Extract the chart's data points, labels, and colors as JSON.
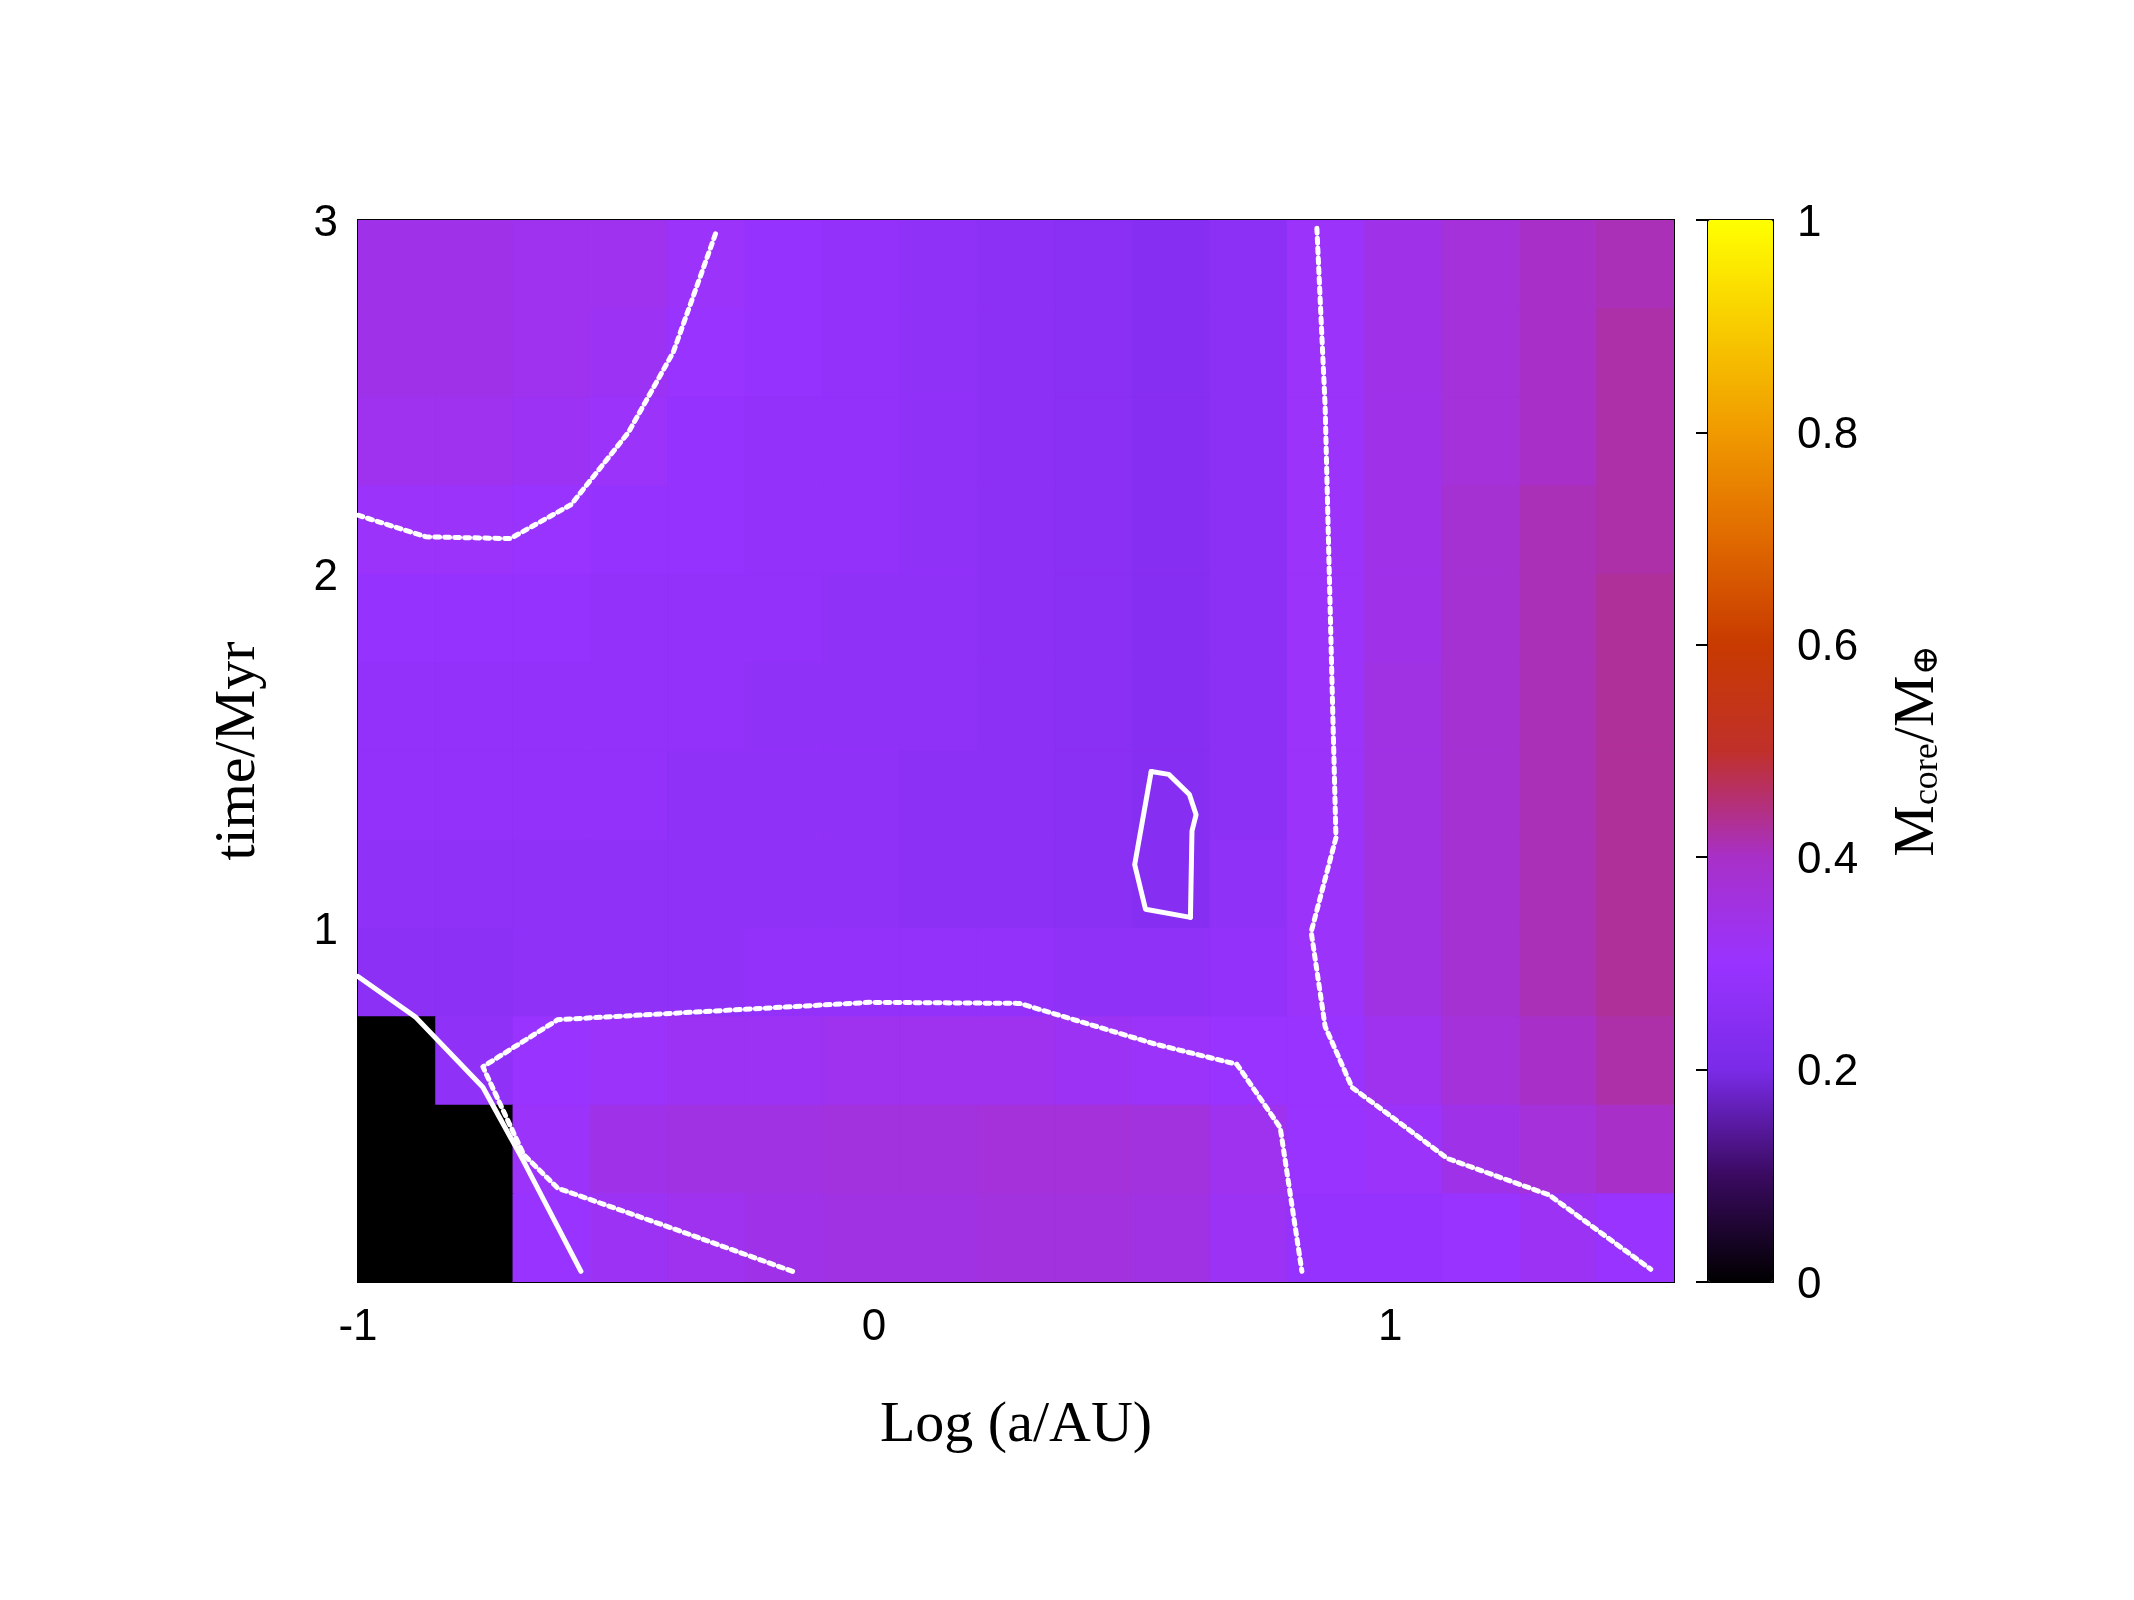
{
  "chart_data": {
    "type": "heatmap",
    "xlabel": "Log (a/AU)",
    "ylabel": "time/Myr",
    "clabel": "M$_{core}$/M$_{⊕}$",
    "x": [
      -0.925,
      -0.775,
      -0.625,
      -0.475,
      -0.325,
      -0.175,
      -0.025,
      0.125,
      0.275,
      0.425,
      0.575,
      0.725,
      0.875,
      1.025,
      1.175,
      1.325,
      1.475
    ],
    "y": [
      2.875,
      2.625,
      2.375,
      2.125,
      1.875,
      1.625,
      1.375,
      1.125,
      0.875,
      0.625,
      0.375,
      0.125
    ],
    "cells": [
      [
        0.34,
        0.34,
        0.33,
        0.33,
        0.31,
        0.29,
        0.28,
        0.27,
        0.26,
        0.25,
        0.24,
        0.26,
        0.31,
        0.34,
        0.37,
        0.4,
        0.41
      ],
      [
        0.34,
        0.34,
        0.33,
        0.32,
        0.3,
        0.29,
        0.28,
        0.27,
        0.26,
        0.25,
        0.24,
        0.26,
        0.31,
        0.34,
        0.37,
        0.4,
        0.42
      ],
      [
        0.33,
        0.33,
        0.32,
        0.31,
        0.29,
        0.28,
        0.28,
        0.27,
        0.26,
        0.25,
        0.24,
        0.26,
        0.31,
        0.34,
        0.37,
        0.4,
        0.42
      ],
      [
        0.31,
        0.31,
        0.3,
        0.29,
        0.29,
        0.28,
        0.28,
        0.27,
        0.26,
        0.25,
        0.24,
        0.26,
        0.31,
        0.34,
        0.38,
        0.41,
        0.42
      ],
      [
        0.29,
        0.29,
        0.29,
        0.28,
        0.28,
        0.28,
        0.27,
        0.27,
        0.26,
        0.25,
        0.24,
        0.26,
        0.31,
        0.34,
        0.38,
        0.41,
        0.43
      ],
      [
        0.28,
        0.28,
        0.28,
        0.28,
        0.28,
        0.27,
        0.27,
        0.27,
        0.26,
        0.25,
        0.24,
        0.26,
        0.31,
        0.35,
        0.38,
        0.41,
        0.43
      ],
      [
        0.28,
        0.28,
        0.28,
        0.28,
        0.27,
        0.27,
        0.27,
        0.26,
        0.26,
        0.25,
        0.24,
        0.26,
        0.31,
        0.35,
        0.38,
        0.41,
        0.43
      ],
      [
        0.27,
        0.27,
        0.27,
        0.27,
        0.27,
        0.27,
        0.27,
        0.26,
        0.26,
        0.25,
        0.24,
        0.27,
        0.31,
        0.35,
        0.38,
        0.41,
        0.43
      ],
      [
        0.26,
        0.26,
        0.27,
        0.27,
        0.27,
        0.28,
        0.28,
        0.28,
        0.28,
        0.27,
        0.27,
        0.28,
        0.31,
        0.35,
        0.38,
        0.41,
        0.43
      ],
      [
        0,
        0.27,
        0.3,
        0.31,
        0.32,
        0.32,
        0.33,
        0.33,
        0.33,
        0.32,
        0.31,
        0.3,
        0.3,
        0.33,
        0.37,
        0.4,
        0.42
      ],
      [
        0,
        0,
        0.31,
        0.34,
        0.35,
        0.35,
        0.36,
        0.36,
        0.37,
        0.37,
        0.36,
        0.33,
        0.3,
        0.31,
        0.34,
        0.37,
        0.4
      ],
      [
        0,
        0,
        0.3,
        0.32,
        0.33,
        0.34,
        0.35,
        0.35,
        0.36,
        0.36,
        0.35,
        0.32,
        0.29,
        0.29,
        0.3,
        0.32,
        0.3
      ]
    ],
    "series": [
      {
        "type": "line",
        "color": "#ffffff",
        "line_style": "dotted",
        "x": [
          -1,
          -0.868,
          -0.705,
          -0.587,
          -0.476,
          -0.389,
          -0.305
        ],
        "values": [
          2.166,
          2.105,
          2.1,
          2.196,
          2.4,
          2.627,
          2.97
        ]
      },
      {
        "type": "line",
        "color": "#ffffff",
        "line_style": "dotted",
        "x": [
          0.858,
          0.874,
          0.887,
          0.895,
          0.847,
          0.874,
          0.926,
          1.111,
          1.308,
          1.505
        ],
        "values": [
          2.977,
          2.474,
          1.712,
          1.255,
          0.989,
          0.722,
          0.55,
          0.349,
          0.246,
          0.036
        ]
      },
      {
        "type": "line",
        "color": "#ffffff",
        "line_style": "dotted",
        "x": [
          -0.158,
          -0.403,
          -0.613,
          -0.679,
          -0.758,
          -0.613,
          -0.008,
          0.282,
          0.545,
          0.703,
          0.787,
          0.829
        ],
        "values": [
          0.03,
          0.158,
          0.265,
          0.36,
          0.608,
          0.741,
          0.79,
          0.787,
          0.672,
          0.615,
          0.436,
          0.03
        ]
      },
      {
        "type": "line",
        "color": "#ffffff",
        "line_style": "solid",
        "x": [
          -1,
          -0.889,
          -0.758,
          -0.679,
          -0.568
        ],
        "values": [
          0.863,
          0.749,
          0.55,
          0.341,
          0.03
        ]
      },
      {
        "type": "line",
        "color": "#ffffff",
        "line_style": "solid",
        "x": [
          0.537,
          0.571,
          0.611,
          0.624,
          0.616,
          0.613
        ],
        "values": [
          1.442,
          1.434,
          1.377,
          1.32,
          1.274,
          1.03
        ]
      },
      {
        "type": "line",
        "color": "#ffffff",
        "line_style": "solid",
        "x": [
          0.537,
          0.505,
          0.526,
          0.613
        ],
        "values": [
          1.442,
          1.179,
          1.053,
          1.03
        ]
      }
    ],
    "xlim": [
      -1,
      1.55
    ],
    "xticks": [
      -1,
      0,
      1
    ],
    "ylim": [
      0,
      3
    ],
    "yticks": [
      1,
      2,
      3
    ],
    "clim": [
      0,
      1
    ],
    "cticks": [
      0,
      0.2,
      0.4,
      0.6,
      0.8,
      1
    ]
  }
}
